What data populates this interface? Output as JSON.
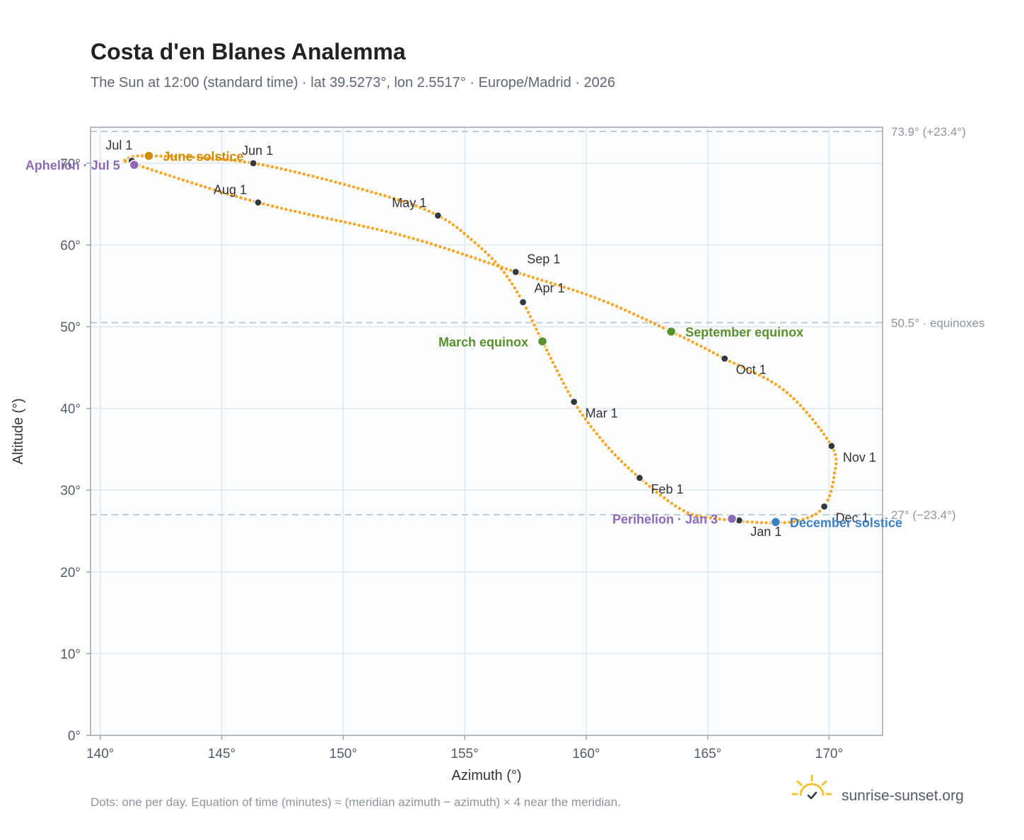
{
  "header": {
    "title": "Costa d'en Blanes Analemma",
    "subtitle": "The Sun at 12:00 (standard time) · lat 39.5273°, lon 2.5517° · Europe/Madrid · 2026"
  },
  "footer": {
    "note": "Dots: one per day. Equation of time (minutes) ≈ (meridian azimuth − azimuth) × 4 near the meridian.",
    "brand": "sunrise-sunset.org",
    "brand_icon": "sun-logo-icon"
  },
  "colors": {
    "curve": "#f5a623",
    "month_dot": "#333840",
    "equinox": "#5a8f2e",
    "june_solstice": "#d18b00",
    "december_solstice": "#3b7fc4",
    "apsis": "#8e6ab5",
    "plot_bg": "#fbfcfe",
    "grid": "#e3e7ec",
    "frame": "#9ba5b2"
  },
  "chart_data": {
    "type": "scatter",
    "xlabel": "Azimuth (°)",
    "ylabel": "Altitude (°)",
    "xlim": [
      139.6,
      172.2
    ],
    "ylim": [
      0,
      74.4
    ],
    "x_ticks": [
      140,
      145,
      150,
      155,
      160,
      165,
      170
    ],
    "x_tick_labels": [
      "140°",
      "145°",
      "150°",
      "155°",
      "160°",
      "165°",
      "170°"
    ],
    "y_ticks": [
      0,
      10,
      20,
      30,
      40,
      50,
      60,
      70
    ],
    "y_tick_labels": [
      "0°",
      "10°",
      "20°",
      "30°",
      "40°",
      "50°",
      "60°",
      "70°"
    ],
    "grid": true,
    "reference_lines": [
      {
        "y": 73.9,
        "label": "73.9° (+23.4°)"
      },
      {
        "y": 50.5,
        "label": "50.5° · equinoxes"
      },
      {
        "y": 27.0,
        "label": "27° (−23.4°)"
      }
    ],
    "path_knots": [
      [
        167.6,
        26.0
      ],
      [
        165.4,
        26.5
      ],
      [
        164.0,
        27.5
      ],
      [
        162.2,
        31.5
      ],
      [
        160.8,
        35.6
      ],
      [
        159.5,
        40.8
      ],
      [
        158.2,
        48.2
      ],
      [
        157.4,
        53.0
      ],
      [
        156.5,
        57.1
      ],
      [
        155.3,
        60.6
      ],
      [
        153.9,
        63.6
      ],
      [
        151.5,
        66.2
      ],
      [
        146.3,
        70.0
      ],
      [
        142.0,
        70.9
      ],
      [
        141.1,
        70.4
      ],
      [
        141.5,
        69.8
      ],
      [
        146.5,
        65.2
      ],
      [
        152.5,
        61.1
      ],
      [
        157.1,
        56.7
      ],
      [
        160.5,
        53.4
      ],
      [
        163.5,
        49.4
      ],
      [
        165.7,
        46.1
      ],
      [
        168.2,
        42.1
      ],
      [
        170.1,
        35.4
      ],
      [
        170.2,
        31.7
      ],
      [
        169.8,
        28.0
      ],
      [
        168.9,
        26.4
      ],
      [
        167.6,
        26.0
      ]
    ],
    "month_markers": [
      {
        "label": "Jan 1",
        "az": 166.3,
        "alt": 26.3
      },
      {
        "label": "Feb 1",
        "az": 162.2,
        "alt": 31.5
      },
      {
        "label": "Mar 1",
        "az": 159.5,
        "alt": 40.8
      },
      {
        "label": "Apr 1",
        "az": 157.4,
        "alt": 53.0
      },
      {
        "label": "May 1",
        "az": 153.9,
        "alt": 63.6
      },
      {
        "label": "Jun 1",
        "az": 146.3,
        "alt": 70.0
      },
      {
        "label": "Jul 1",
        "az": 141.3,
        "alt": 70.3
      },
      {
        "label": "Aug 1",
        "az": 146.5,
        "alt": 65.2
      },
      {
        "label": "Sep 1",
        "az": 157.1,
        "alt": 56.7
      },
      {
        "label": "Oct 1",
        "az": 165.7,
        "alt": 46.1
      },
      {
        "label": "Nov 1",
        "az": 170.1,
        "alt": 35.4
      },
      {
        "label": "Dec 1",
        "az": 169.8,
        "alt": 28.0
      }
    ],
    "events": [
      {
        "label": "March equinox",
        "az": 158.2,
        "alt": 48.2,
        "color_key": "equinox",
        "side": "left"
      },
      {
        "label": "September equinox",
        "az": 163.5,
        "alt": 49.4,
        "color_key": "equinox",
        "side": "right"
      },
      {
        "label": "June solstice",
        "az": 142.0,
        "alt": 70.9,
        "color_key": "june_solstice",
        "side": "right"
      },
      {
        "label": "December solstice",
        "az": 167.8,
        "alt": 26.1,
        "color_key": "december_solstice",
        "side": "right"
      },
      {
        "label": "Aphelion · Jul 5",
        "az": 141.4,
        "alt": 69.8,
        "color_key": "apsis",
        "side": "left"
      },
      {
        "label": "Perihelion · Jan 3",
        "az": 166.0,
        "alt": 26.5,
        "color_key": "apsis",
        "side": "left"
      }
    ]
  }
}
